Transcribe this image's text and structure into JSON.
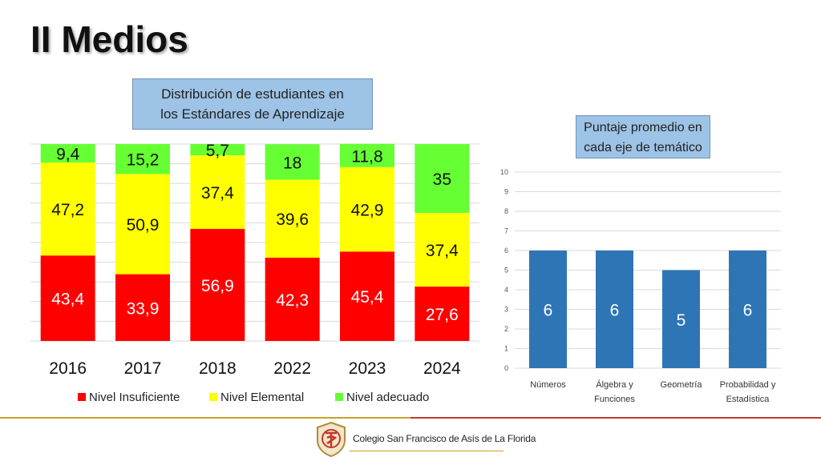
{
  "page": {
    "title": "II Medios"
  },
  "left_chart": {
    "title_line1": "Distribución de estudiantes en",
    "title_line2": "los Estándares de Aprendizaje"
  },
  "right_chart": {
    "title_line1": "Puntaje promedio en",
    "title_line2": "cada eje de temático"
  },
  "footer": {
    "school_name": "Colegio San Francisco de Asís de La Florida"
  },
  "colors": {
    "insuficiente": "#ff0000",
    "elemental": "#ffff00",
    "adecuado": "#66ff33",
    "bar_blue": "#2e75b6",
    "title_box": "#9dc3e6"
  },
  "chart_data": [
    {
      "type": "bar",
      "stacked": true,
      "categories": [
        "2016",
        "2017",
        "2018",
        "2022",
        "2023",
        "2024"
      ],
      "series": [
        {
          "name": "Nivel Insuficiente",
          "color": "#ff0000",
          "values": [
            43.4,
            33.9,
            56.9,
            42.3,
            45.4,
            27.6
          ],
          "labels": [
            "43,4",
            "33,9",
            "56,9",
            "42,3",
            "45,4",
            "27,6"
          ]
        },
        {
          "name": "Nivel Elemental",
          "color": "#ffff00",
          "values": [
            47.2,
            50.9,
            37.4,
            39.6,
            42.9,
            37.4
          ],
          "labels": [
            "47,2",
            "50,9",
            "37,4",
            "39,6",
            "42,9",
            "37,4"
          ]
        },
        {
          "name": "Nivel adecuado",
          "color": "#66ff33",
          "values": [
            9.4,
            15.2,
            5.7,
            18,
            11.8,
            35
          ],
          "labels": [
            "9,4",
            "15,2",
            "5,7",
            "18",
            "11,8",
            "35"
          ]
        }
      ],
      "ylim": [
        0,
        100
      ],
      "grid": true,
      "legend": "bottom"
    },
    {
      "type": "bar",
      "categories": [
        "Números",
        "Álgebra y Funciones",
        "Geometría",
        "Probabilidad y Estadística"
      ],
      "category_lines": [
        [
          "Números"
        ],
        [
          "Álgebra y",
          "Funciones"
        ],
        [
          "Geometría"
        ],
        [
          "Probabilidad y",
          "Estadística"
        ]
      ],
      "values": [
        6,
        6,
        5,
        6
      ],
      "ylim": [
        0,
        10
      ],
      "yticks": [
        "0",
        "1",
        "2",
        "3",
        "4",
        "5",
        "6",
        "7",
        "8",
        "9",
        "10"
      ],
      "grid": true
    }
  ]
}
